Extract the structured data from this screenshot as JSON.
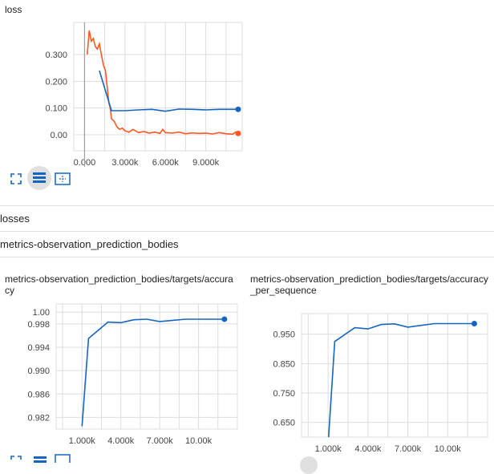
{
  "sections": {
    "losses_title": "losses",
    "metrics_title": "metrics-observation_prediction_bodies"
  },
  "toolbar_icons": [
    "fullscreen-icon",
    "data-table-icon",
    "fit-domain-icon"
  ],
  "colors": {
    "smoothed_series": "#ff5722",
    "main_series": "#1565c0",
    "grid": "#dddddd",
    "divider": "#e0e0e0"
  },
  "chart_data": [
    {
      "type": "line",
      "title": "loss",
      "xticks": [
        "0.000",
        "3.000k",
        "6.000k",
        "9.000k"
      ],
      "yticks": [
        "0.00",
        "0.100",
        "0.200",
        "0.300"
      ],
      "xlim": [
        -800,
        11700
      ],
      "ylim": [
        -0.06,
        0.42
      ],
      "series": [
        {
          "color": "#ff5722",
          "x": [
            200,
            350,
            500,
            650,
            800,
            950,
            1100,
            1250,
            1400,
            1550,
            1700,
            1800,
            1900,
            2000,
            2200,
            2400,
            2600,
            2800,
            3000,
            3300,
            3600,
            4000,
            4400,
            4800,
            5200,
            5600,
            5800,
            6000,
            6500,
            7000,
            7500,
            8000,
            8500,
            9000,
            9500,
            10000,
            10500,
            11000,
            11200,
            11400
          ],
          "y": [
            0.3,
            0.39,
            0.35,
            0.36,
            0.33,
            0.32,
            0.34,
            0.3,
            0.26,
            0.24,
            0.17,
            0.12,
            0.1,
            0.06,
            0.05,
            0.03,
            0.02,
            0.025,
            0.015,
            0.01,
            0.02,
            0.008,
            0.012,
            0.006,
            0.01,
            0.005,
            0.02,
            0.008,
            0.006,
            0.01,
            0.004,
            0.007,
            0.005,
            0.006,
            0.003,
            0.008,
            0.004,
            0.002,
            0.01,
            0.005
          ]
        },
        {
          "color": "#1565c0",
          "x": [
            1100,
            2000,
            3000,
            4000,
            5000,
            6000,
            7000,
            8000,
            9000,
            10000,
            11400
          ],
          "y": [
            0.24,
            0.09,
            0.09,
            0.093,
            0.095,
            0.088,
            0.096,
            0.095,
            0.093,
            0.095,
            0.095
          ]
        }
      ]
    },
    {
      "type": "line",
      "title": "metrics-observation_prediction_bodies/targets/accuracy",
      "xticks": [
        "1.000k",
        "4.000k",
        "7.000k",
        "10.00k"
      ],
      "yticks": [
        "0.982",
        "0.986",
        "0.990",
        "0.994",
        "0.998",
        "1.00"
      ],
      "xlim": [
        -1000,
        13000
      ],
      "ylim": [
        0.98,
        1.0014
      ],
      "series": [
        {
          "color": "#1565c0",
          "x": [
            1000,
            1500,
            3000,
            4000,
            5000,
            6000,
            7000,
            8000,
            9000,
            10000,
            12000
          ],
          "y": [
            0.9805,
            0.9955,
            0.9983,
            0.9982,
            0.9987,
            0.9988,
            0.9984,
            0.9986,
            0.9988,
            0.9988,
            0.9988
          ]
        }
      ]
    },
    {
      "type": "line",
      "title": "metrics-observation_prediction_bodies/targets/accuracy_per_sequence",
      "xticks": [
        "1.000k",
        "4.000k",
        "7.000k",
        "10.00k"
      ],
      "yticks": [
        "0.650",
        "0.750",
        "0.850",
        "0.950"
      ],
      "xlim": [
        -1000,
        13000
      ],
      "ylim": [
        0.6,
        1.02
      ],
      "series": [
        {
          "color": "#1565c0",
          "x": [
            1000,
            1500,
            3000,
            4000,
            5000,
            6000,
            7000,
            8000,
            9000,
            10000,
            12000
          ],
          "y": [
            0.55,
            0.925,
            0.972,
            0.968,
            0.983,
            0.985,
            0.974,
            0.98,
            0.986,
            0.986,
            0.986
          ]
        }
      ]
    }
  ]
}
